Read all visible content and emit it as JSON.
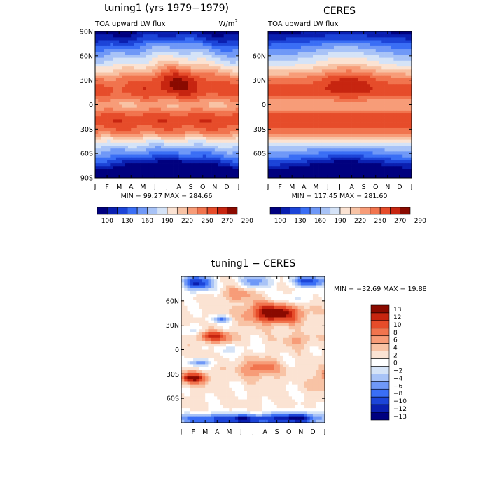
{
  "chart_data": [
    {
      "type": "heatmap",
      "title": "tuning1 (yrs 1979−1979)",
      "left_label": "TOA upward LW flux",
      "right_label": "W/m",
      "right_label_sup": "2",
      "stats": "MIN =  99.27 MAX = 284.66",
      "x_ticks": [
        "J",
        "F",
        "M",
        "A",
        "M",
        "J",
        "J",
        "A",
        "S",
        "O",
        "N",
        "D",
        "J"
      ],
      "y_ticks": [
        "90N",
        "60N",
        "30N",
        "0",
        "30S",
        "60S",
        "90S"
      ],
      "levels": [
        100,
        130,
        160,
        190,
        220,
        250,
        270,
        290
      ],
      "colorbar_labels": [
        "100",
        "130",
        "160",
        "190",
        "220",
        "250",
        "270",
        "290"
      ],
      "zlim": [
        99.27,
        284.66
      ]
    },
    {
      "type": "heatmap",
      "title": "CERES",
      "left_label": "TOA upward LW flux",
      "stats": "MIN = 117.45 MAX = 281.60",
      "x_ticks": [
        "J",
        "F",
        "M",
        "A",
        "M",
        "J",
        "J",
        "A",
        "S",
        "O",
        "N",
        "D",
        "J"
      ],
      "y_ticks": [
        "",
        "60N",
        "30N",
        "0",
        "30S",
        "60S",
        ""
      ],
      "levels": [
        100,
        130,
        160,
        190,
        220,
        250,
        270,
        290
      ],
      "colorbar_labels": [
        "100",
        "130",
        "160",
        "190",
        "220",
        "250",
        "270",
        "290"
      ],
      "zlim": [
        117.45,
        281.6
      ]
    },
    {
      "type": "heatmap",
      "title": "tuning1 − CERES",
      "stats": "MIN = −32.69 MAX =  19.88",
      "x_ticks": [
        "J",
        "F",
        "M",
        "A",
        "M",
        "J",
        "J",
        "A",
        "S",
        "O",
        "N",
        "D",
        "J"
      ],
      "y_ticks": [
        "",
        "60N",
        "30N",
        "0",
        "30S",
        "60S",
        ""
      ],
      "levels": [
        -13,
        -12,
        -10,
        -8,
        -6,
        -4,
        -2,
        0,
        2,
        4,
        6,
        8,
        10,
        12,
        13
      ],
      "colorbar_labels": [
        "13",
        "12",
        "10",
        "8",
        "6",
        "4",
        "2",
        "0",
        "−2",
        "−4",
        "−6",
        "−8",
        "−10",
        "−12",
        "−13"
      ],
      "zlim": [
        -32.69,
        19.88
      ]
    }
  ],
  "colors": {
    "flux_scale": [
      "#00007f",
      "#0a1fb0",
      "#1c44d8",
      "#3a6ef5",
      "#6f98f7",
      "#a8c3f7",
      "#d5e3f7",
      "#fbe3d3",
      "#f8c3a5",
      "#f79c78",
      "#f1744e",
      "#e64c2a",
      "#c72510",
      "#8a0a00"
    ],
    "diff_scale": [
      "#00007f",
      "#0a1fb0",
      "#1c44d8",
      "#3a6ef5",
      "#6f98f7",
      "#a8c3f7",
      "#d5e3f7",
      "#ffffff",
      "#fbe3d3",
      "#f8c3a5",
      "#f79c78",
      "#f1744e",
      "#e64c2a",
      "#c72510",
      "#8a0a00"
    ]
  }
}
